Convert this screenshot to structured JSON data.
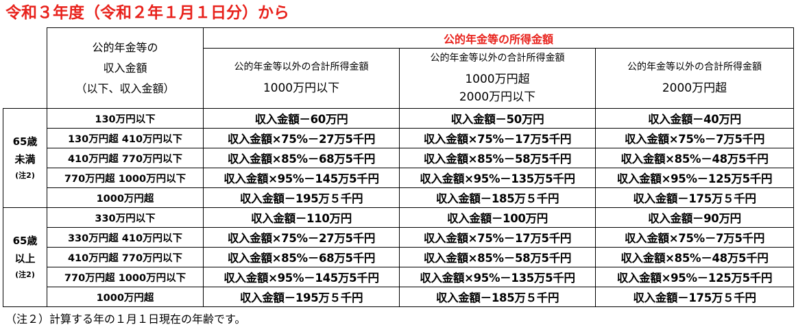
{
  "title": "令和３年度（令和２年１月１日分）から",
  "header": {
    "income_label": [
      "公的年金等の",
      "収入金額",
      "（以下、収入金額）"
    ],
    "group_title": "公的年金等の所得金額",
    "cols": [
      {
        "caption": "公的年金等以外の合計所得金額",
        "lines": [
          "1000万円以下"
        ]
      },
      {
        "caption": "公的年金等以外の合計所得金額",
        "lines": [
          "1000万円超",
          "2000万円以下"
        ]
      },
      {
        "caption": "公的年金等以外の合計所得金額",
        "lines": [
          "2000万円超"
        ]
      }
    ]
  },
  "groups": [
    {
      "age": [
        "65歳",
        "未満"
      ],
      "note": "(注2)",
      "rows": [
        {
          "income": "130万円以下",
          "values": [
            "収入金額－60万円",
            "収入金額－50万円",
            "収入金額－40万円"
          ]
        },
        {
          "income": "130万円超 410万円以下",
          "values": [
            "収入金額×75%－27万5千円",
            "収入金額×75%－17万5千円",
            "収入金額×75%－7万5千円"
          ]
        },
        {
          "income": "410万円超 770万円以下",
          "values": [
            "収入金額×85%－68万5千円",
            "収入金額×85%－58万5千円",
            "収入金額×85%－48万5千円"
          ]
        },
        {
          "income": "770万円超 1000万円以下",
          "values": [
            "収入金額×95%－145万5千円",
            "収入金額×95%－135万5千円",
            "収入金額×95%－125万5千円"
          ]
        },
        {
          "income": "1000万円超",
          "values": [
            "収入金額－195万５千円",
            "収入金額－185万５千円",
            "収入金額－175万５千円"
          ]
        }
      ]
    },
    {
      "age": [
        "65歳",
        "以上"
      ],
      "note": "(注2)",
      "rows": [
        {
          "income": "330万円以下",
          "values": [
            "収入金額－110万円",
            "収入金額－100万円",
            "収入金額－90万円"
          ]
        },
        {
          "income": "330万円超 410万円以下",
          "values": [
            "収入金額×75%－27万5千円",
            "収入金額×75%－17万5千円",
            "収入金額×75%－7万5千円"
          ]
        },
        {
          "income": "410万円超 770万円以下",
          "values": [
            "収入金額×85%－68万5千円",
            "収入金額×85%－58万5千円",
            "収入金額×85%－48万5千円"
          ]
        },
        {
          "income": "770万円超 1000万円以下",
          "values": [
            "収入金額×95%－145万5千円",
            "収入金額×95%－135万5千円",
            "収入金額×95%－125万5千円"
          ]
        },
        {
          "income": "1000万円超",
          "values": [
            "収入金額－195万５千円",
            "収入金額－185万５千円",
            "収入金額－175万５千円"
          ]
        }
      ]
    }
  ],
  "footnote": "（注２）計算する年の１月１日現在の年齢です。",
  "colors": {
    "title": "#e8221c",
    "header_accent": "#e8221c",
    "border": "#000000"
  }
}
